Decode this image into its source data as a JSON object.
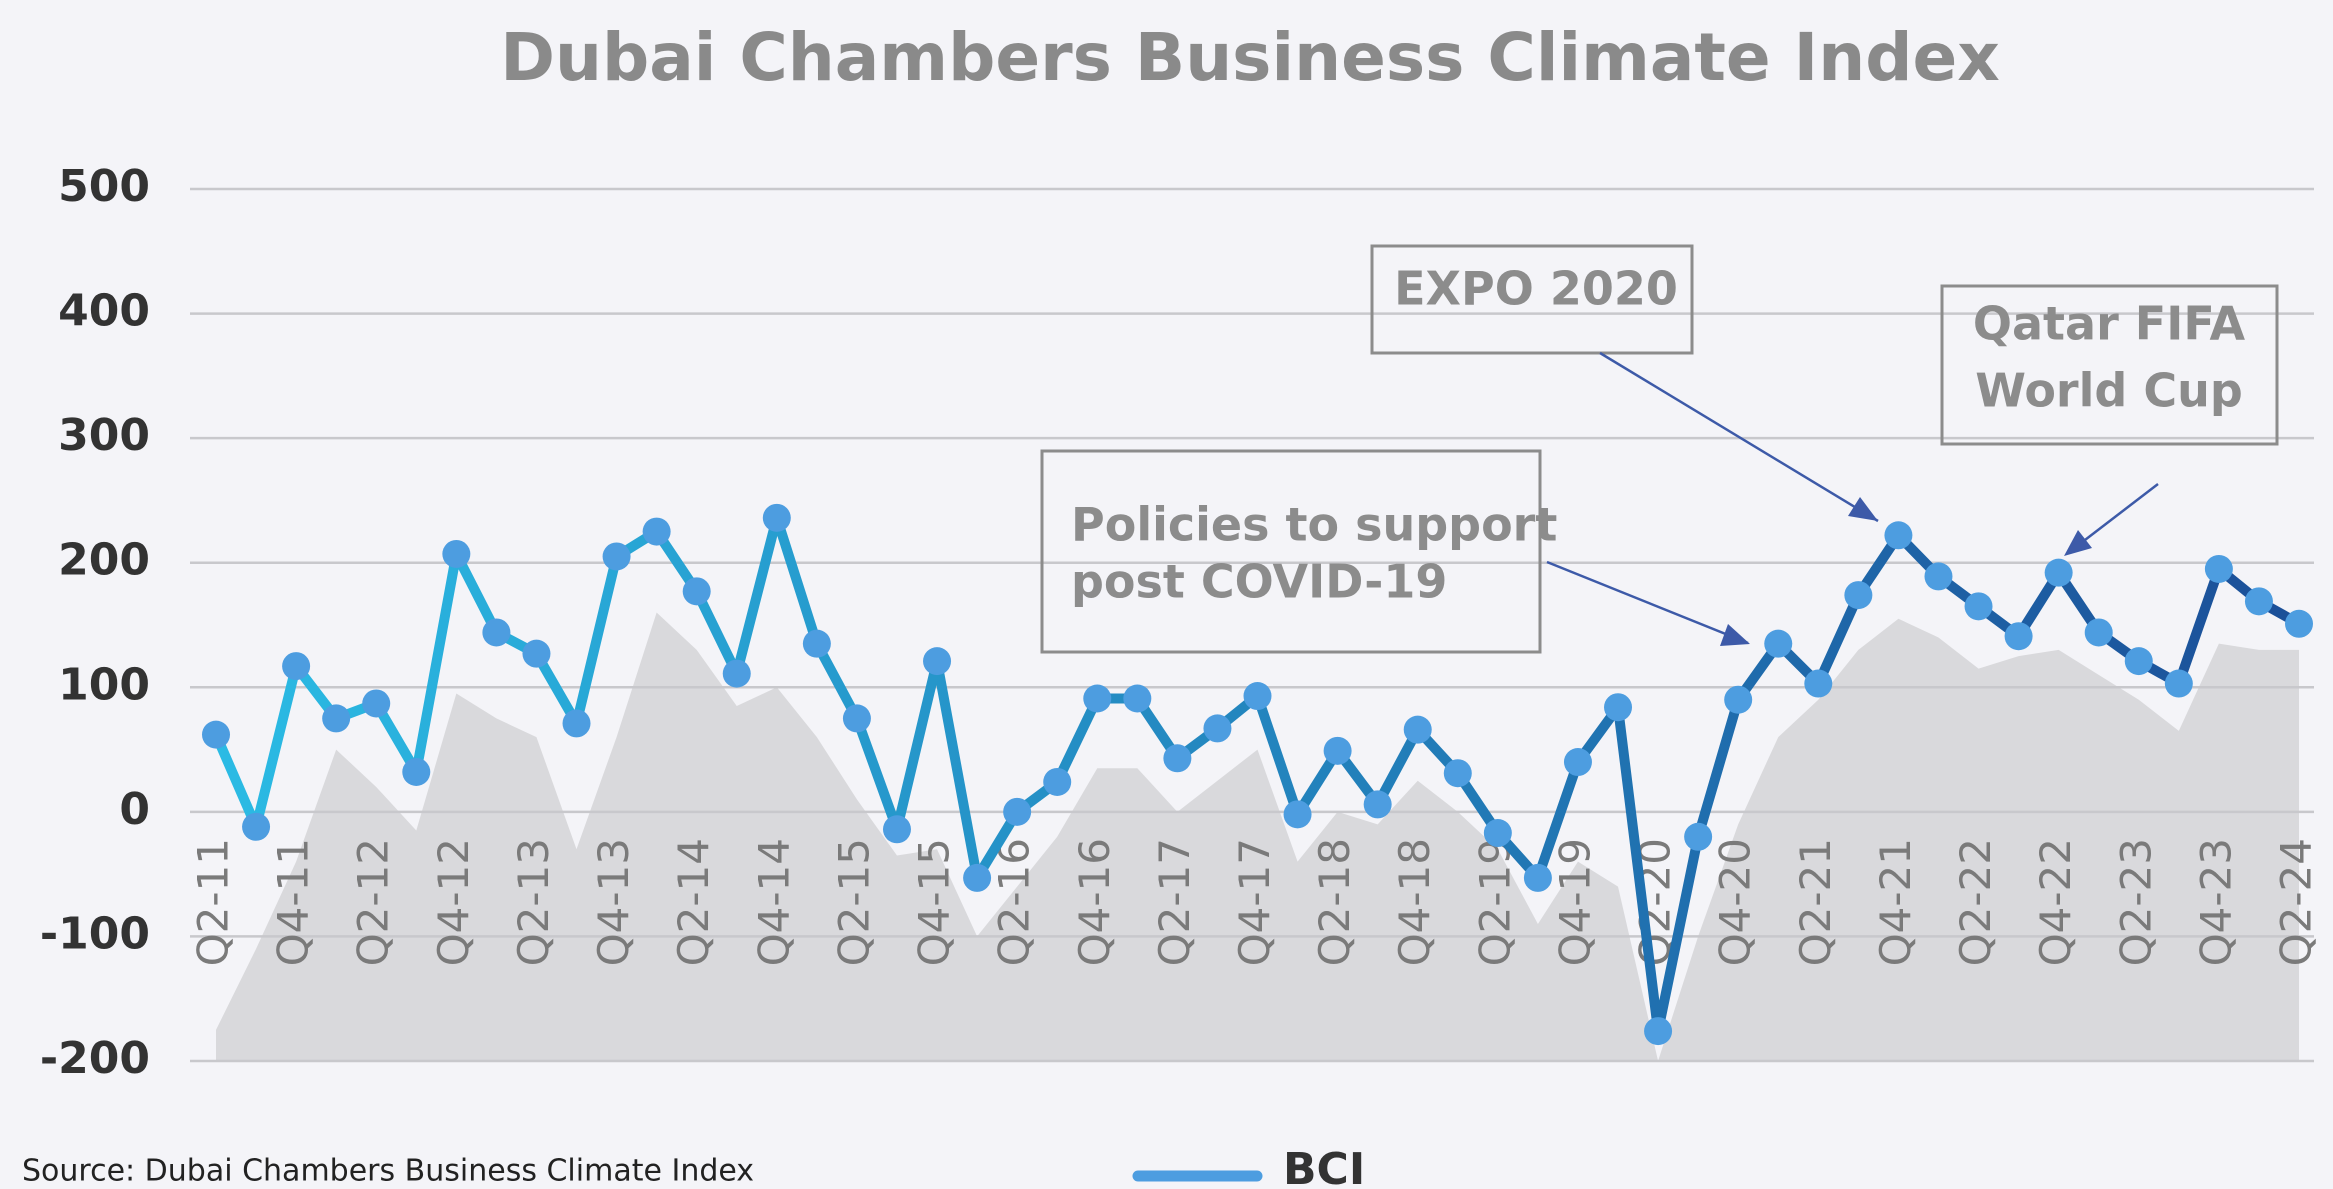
{
  "chart_data": {
    "type": "line",
    "title": "Dubai Chambers Business Climate Index",
    "source": "Source: Dubai Chambers Business Climate Index",
    "categories": [
      "Q2-11",
      null,
      "Q4-11",
      null,
      "Q2-12",
      null,
      "Q4-12",
      null,
      "Q2-13",
      null,
      "Q4-13",
      null,
      "Q2-14",
      null,
      "Q4-14",
      null,
      "Q2-15",
      null,
      "Q4-15",
      null,
      "Q2-16",
      null,
      "Q4-16",
      null,
      "Q2-17",
      null,
      "Q4-17",
      null,
      "Q2-18",
      null,
      "Q4-18",
      null,
      "Q2-19",
      null,
      "Q4-19",
      null,
      "Q2-20",
      null,
      "Q4-20",
      null,
      "Q2-21",
      null,
      "Q4-21",
      null,
      "Q2-22",
      null,
      "Q4-22",
      null,
      "Q2-23",
      null,
      "Q4-23",
      null,
      "Q2-24"
    ],
    "series": [
      {
        "name": "BCI",
        "type": "line",
        "color": "#2bbbe4",
        "color_end": "#1b4f98",
        "marker_color": "#4d9de0",
        "values": [
          62,
          -12,
          117,
          75,
          87,
          32,
          207,
          144,
          127,
          71,
          205,
          225,
          177,
          111,
          236,
          135,
          75,
          -14,
          121,
          -53,
          0,
          24,
          91,
          91,
          43,
          67,
          93,
          -2,
          49,
          6,
          66,
          31,
          -17,
          -53,
          40,
          84,
          -176,
          -20,
          90,
          135,
          103,
          174,
          222,
          189,
          165,
          141,
          192,
          144,
          121,
          103,
          195,
          169,
          151
        ]
      },
      {
        "type": "area",
        "color": "#d9d9dc",
        "values": [
          -175,
          -110,
          -40,
          50,
          20,
          -15,
          95,
          75,
          60,
          -30,
          60,
          160,
          130,
          85,
          100,
          60,
          10,
          -35,
          -30,
          -100,
          -60,
          -20,
          35,
          35,
          0,
          25,
          50,
          -40,
          0,
          -10,
          25,
          0,
          -30,
          -90,
          -40,
          -60,
          -200,
          -100,
          -10,
          60,
          90,
          130,
          155,
          140,
          115,
          125,
          130,
          110,
          90,
          65,
          135,
          130,
          130
        ]
      }
    ],
    "ylim": [
      -200,
      500
    ],
    "yticks": [
      -200,
      -100,
      0,
      100,
      200,
      300,
      400,
      500
    ],
    "grid": true,
    "annotations": [
      {
        "lines": [
          "EXPO 2020"
        ]
      },
      {
        "lines": [
          "Qatar FIFA",
          "World Cup"
        ]
      },
      {
        "lines": [
          "Policies to support",
          "post COVID-19"
        ]
      }
    ]
  }
}
